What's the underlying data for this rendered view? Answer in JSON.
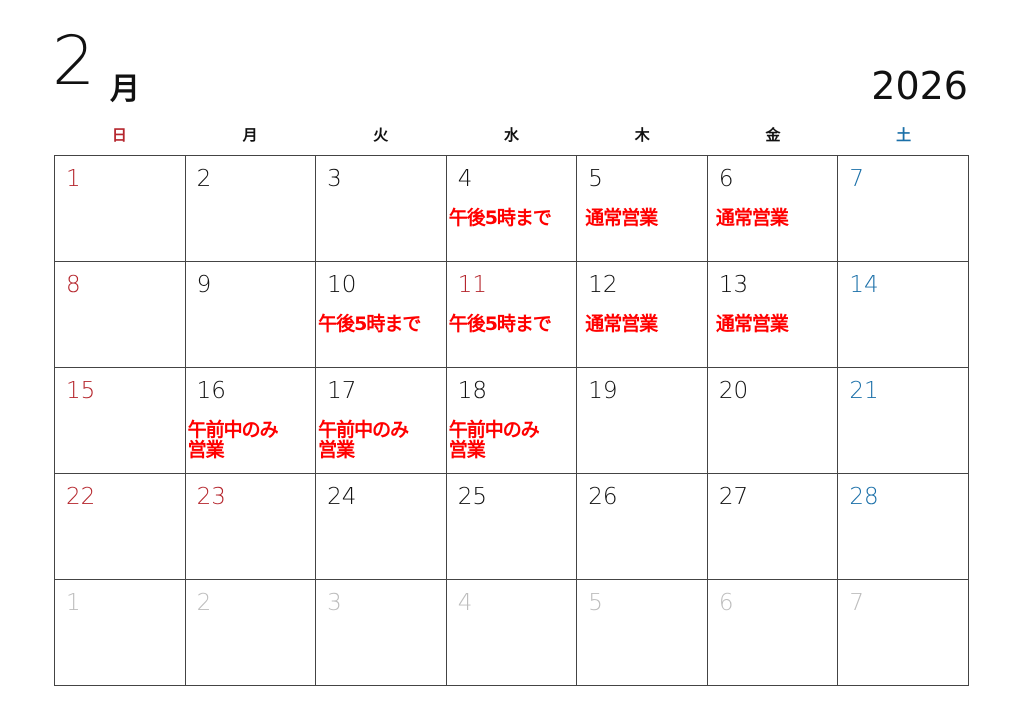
{
  "header": {
    "month": "2",
    "month_suffix": "月",
    "year": "2026"
  },
  "colors": {
    "sunday": "#b5262d",
    "saturday": "#1a6fa8",
    "muted": "#bdbdbd",
    "note": "#ff0000",
    "default": "#111111"
  },
  "weekdays": [
    "日",
    "月",
    "火",
    "水",
    "木",
    "金",
    "土"
  ],
  "weeks": [
    [
      {
        "day": "1",
        "type": "sunday"
      },
      {
        "day": "2"
      },
      {
        "day": "3"
      },
      {
        "day": "4",
        "note": "午後5時まで"
      },
      {
        "day": "5",
        "note": "通常営業"
      },
      {
        "day": "6",
        "note": "通常営業"
      },
      {
        "day": "7",
        "type": "saturday"
      }
    ],
    [
      {
        "day": "8",
        "type": "sunday"
      },
      {
        "day": "9"
      },
      {
        "day": "10",
        "note": "午後5時まで"
      },
      {
        "day": "11",
        "type": "sunday",
        "note": "午後5時まで"
      },
      {
        "day": "12",
        "note": "通常営業"
      },
      {
        "day": "13",
        "note": "通常営業"
      },
      {
        "day": "14",
        "type": "saturday"
      }
    ],
    [
      {
        "day": "15",
        "type": "sunday"
      },
      {
        "day": "16",
        "note": "午前中のみ\n営業"
      },
      {
        "day": "17",
        "note": "午前中のみ\n営業"
      },
      {
        "day": "18",
        "note": "午前中のみ\n営業"
      },
      {
        "day": "19"
      },
      {
        "day": "20"
      },
      {
        "day": "21",
        "type": "saturday"
      }
    ],
    [
      {
        "day": "22",
        "type": "sunday"
      },
      {
        "day": "23",
        "type": "sunday"
      },
      {
        "day": "24"
      },
      {
        "day": "25"
      },
      {
        "day": "26"
      },
      {
        "day": "27"
      },
      {
        "day": "28",
        "type": "saturday"
      }
    ],
    [
      {
        "day": "1",
        "type": "muted"
      },
      {
        "day": "2",
        "type": "muted"
      },
      {
        "day": "3",
        "type": "muted"
      },
      {
        "day": "4",
        "type": "muted"
      },
      {
        "day": "5",
        "type": "muted"
      },
      {
        "day": "6",
        "type": "muted"
      },
      {
        "day": "7",
        "type": "muted"
      }
    ]
  ]
}
